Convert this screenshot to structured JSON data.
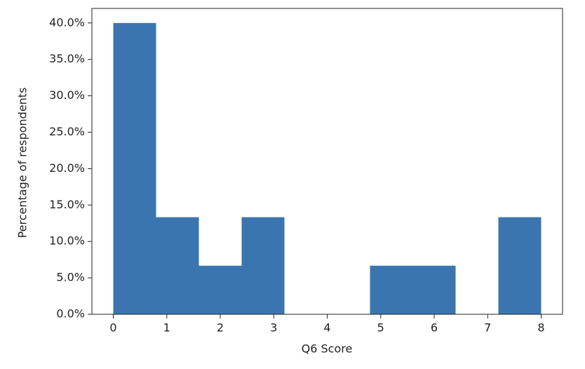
{
  "chart_data": {
    "type": "histogram",
    "xlabel": "Q6 Score",
    "ylabel": "Percentage of respondents",
    "bins": [
      0,
      0.8,
      1.6,
      2.4,
      3.2,
      4,
      4.8,
      5.6,
      6.4,
      7.2,
      8
    ],
    "values": [
      40,
      13.33,
      6.67,
      13.33,
      0,
      0,
      6.67,
      6.67,
      0,
      13.33
    ],
    "color": "#3a75af",
    "xlim": [
      -0.4,
      8.4
    ],
    "xticks": [
      0,
      1,
      2,
      3,
      4,
      5,
      6,
      7,
      8
    ],
    "ylim": [
      0,
      42
    ],
    "yticks": [
      {
        "value": 0,
        "label": "0.0%"
      },
      {
        "value": 5,
        "label": "5.0%"
      },
      {
        "value": 10,
        "label": "10.0%"
      },
      {
        "value": 15,
        "label": "15.0%"
      },
      {
        "value": 20,
        "label": "20.0%"
      },
      {
        "value": 25,
        "label": "25.0%"
      },
      {
        "value": 30,
        "label": "30.0%"
      },
      {
        "value": 35,
        "label": "35.0%"
      },
      {
        "value": 40,
        "label": "40.0%"
      }
    ],
    "grid": false
  }
}
